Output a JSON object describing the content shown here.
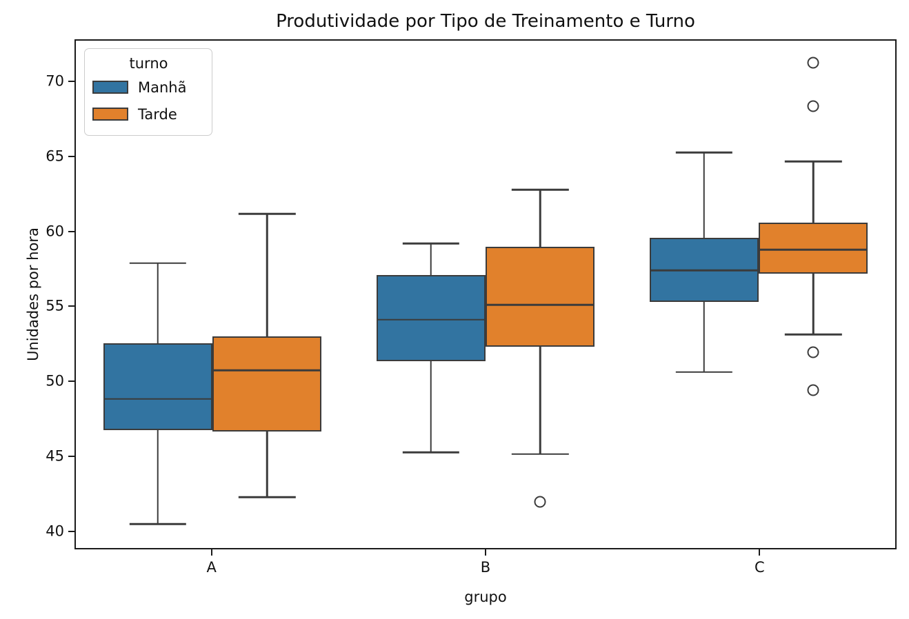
{
  "chart_data": {
    "type": "grouped_boxplot",
    "title": "Produtividade por Tipo de Treinamento e Turno",
    "xlabel": "grupo",
    "ylabel": "Unidades por hora",
    "categories": [
      "A",
      "B",
      "C"
    ],
    "ylim": [
      38.8,
      72.8
    ],
    "yticks": [
      40,
      45,
      50,
      55,
      60,
      65,
      70
    ],
    "grid": false,
    "legend": {
      "title": "turno",
      "position": "upper left"
    },
    "colors": {
      "manha": "#3274a1",
      "tarde": "#e1812c",
      "line": "#3b3b3b",
      "spine": "#1a1a1a"
    },
    "group_width": 0.8,
    "series": [
      {
        "name": "Manhã",
        "color": "#3274a1",
        "boxes": [
          {
            "category": "A",
            "whislo": 40.4,
            "q1": 46.7,
            "med": 48.8,
            "q3": 52.5,
            "whishi": 57.9,
            "outliers": []
          },
          {
            "category": "B",
            "whislo": 45.2,
            "q1": 51.3,
            "med": 54.1,
            "q3": 57.1,
            "whishi": 59.2,
            "outliers": []
          },
          {
            "category": "C",
            "whislo": 50.6,
            "q1": 55.3,
            "med": 57.4,
            "q3": 59.6,
            "whishi": 65.3,
            "outliers": []
          }
        ]
      },
      {
        "name": "Tarde",
        "color": "#e1812c",
        "boxes": [
          {
            "category": "A",
            "whislo": 42.2,
            "q1": 46.6,
            "med": 50.7,
            "q3": 53.0,
            "whishi": 61.2,
            "outliers": []
          },
          {
            "category": "B",
            "whislo": 45.1,
            "q1": 52.3,
            "med": 55.1,
            "q3": 59.0,
            "whishi": 62.8,
            "outliers": [
              41.9
            ]
          },
          {
            "category": "C",
            "whislo": 53.1,
            "q1": 57.2,
            "med": 58.8,
            "q3": 60.6,
            "whishi": 64.7,
            "outliers": [
              71.3,
              68.4,
              51.9,
              49.4
            ]
          }
        ]
      }
    ]
  }
}
